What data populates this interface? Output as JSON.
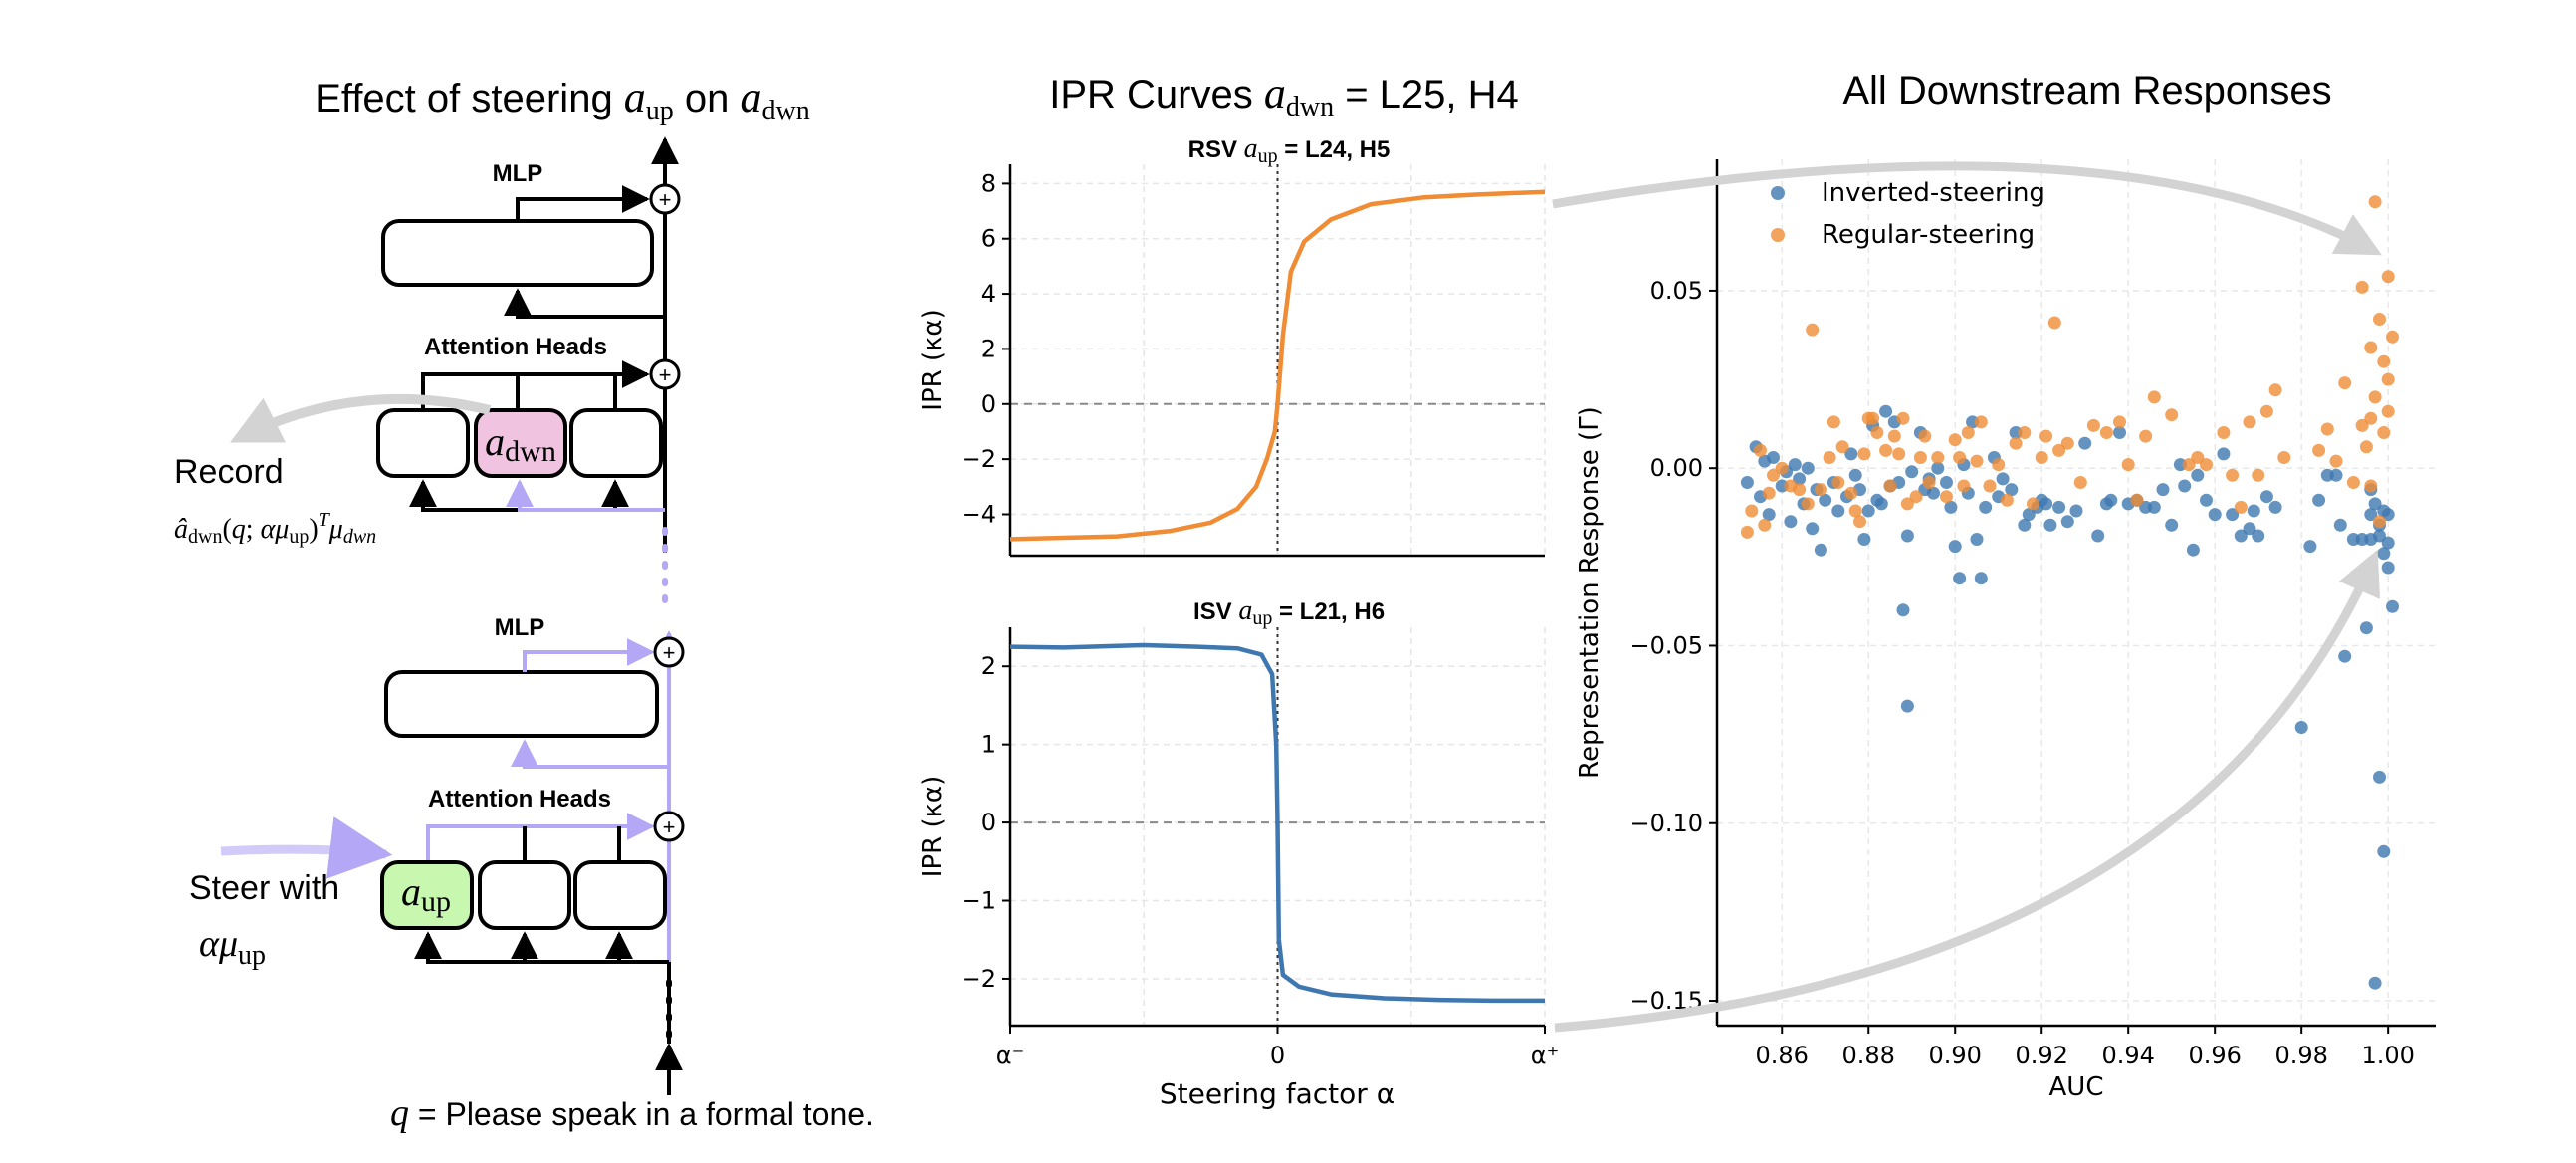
{
  "diagram": {
    "title_prefix": "Effect of steering ",
    "title_mid": " on ",
    "mlp_label": "MLP",
    "attention_label": "Attention Heads",
    "record_label": "Record",
    "steer_label": "Steer with",
    "query_text": " = Please speak in a formal tone.",
    "colors": {
      "lavender": "#b4a7f5",
      "pink": "#f0c4e0",
      "green": "#c8f7b0",
      "grey_arrow": "#d3d3d3"
    }
  },
  "ipr_panel": {
    "title_prefix": "IPR Curves ",
    "title_suffix": " =  L25, H4",
    "top_title_prefix": "RSV ",
    "top_title_suffix": " = L24, H5",
    "bottom_title_prefix": "ISV ",
    "bottom_title_suffix": " = L21, H6",
    "xlabel": "Steering factor α",
    "xticks": [
      "α⁻",
      "0",
      "α⁺"
    ]
  },
  "scatter_panel": {
    "title": "All Downstream Responses"
  },
  "chart_data": [
    {
      "type": "line",
      "title": "RSV a_up = L24, H5",
      "xlabel": "Steering factor α",
      "ylabel": "IPR (κα)",
      "xlim": [
        -1,
        1
      ],
      "ylim": [
        -5.5,
        8.7
      ],
      "yticks": [
        -4,
        -2,
        0,
        2,
        4,
        6,
        8
      ],
      "color": "#ef8c34",
      "x": [
        -1.0,
        -0.8,
        -0.6,
        -0.4,
        -0.25,
        -0.15,
        -0.08,
        -0.04,
        -0.01,
        0.0,
        0.02,
        0.05,
        0.1,
        0.2,
        0.35,
        0.55,
        0.75,
        1.0
      ],
      "y": [
        -4.9,
        -4.85,
        -4.8,
        -4.6,
        -4.3,
        -3.8,
        -3.0,
        -2.0,
        -1.0,
        0.0,
        2.5,
        4.8,
        5.9,
        6.7,
        7.25,
        7.5,
        7.6,
        7.7
      ]
    },
    {
      "type": "line",
      "title": "ISV a_up = L21, H6",
      "xlabel": "Steering factor α",
      "ylabel": "IPR (κα)",
      "xlim": [
        -1,
        1
      ],
      "ylim": [
        -2.6,
        2.5
      ],
      "yticks": [
        -2,
        -1,
        0,
        1,
        2
      ],
      "xticks": [
        "α⁻",
        "0",
        "α⁺"
      ],
      "color": "#3f78b0",
      "x": [
        -1.0,
        -0.8,
        -0.5,
        -0.3,
        -0.15,
        -0.06,
        -0.02,
        -0.005,
        0.0,
        0.005,
        0.02,
        0.08,
        0.2,
        0.4,
        0.6,
        0.8,
        1.0
      ],
      "y": [
        2.25,
        2.24,
        2.27,
        2.25,
        2.23,
        2.15,
        1.9,
        1.0,
        0.0,
        -1.5,
        -1.95,
        -2.1,
        -2.2,
        -2.25,
        -2.27,
        -2.28,
        -2.28
      ]
    },
    {
      "type": "scatter",
      "xlabel": "AUC",
      "ylabel": "Representation Response (Γ)",
      "xlim": [
        0.845,
        1.011
      ],
      "ylim": [
        -0.157,
        0.087
      ],
      "xticks": [
        0.86,
        0.88,
        0.9,
        0.92,
        0.94,
        0.96,
        0.98,
        1.0
      ],
      "yticks": [
        -0.15,
        -0.1,
        -0.05,
        0.0,
        0.05
      ],
      "legend": "top-left",
      "series": [
        {
          "name": "Inverted-steering",
          "color": "#3f78b0",
          "points": [
            [
              0.852,
              -0.004
            ],
            [
              0.854,
              0.006
            ],
            [
              0.855,
              -0.008
            ],
            [
              0.856,
              0.002
            ],
            [
              0.857,
              -0.013
            ],
            [
              0.858,
              0.003
            ],
            [
              0.86,
              -0.005
            ],
            [
              0.861,
              -0.001
            ],
            [
              0.862,
              -0.015
            ],
            [
              0.863,
              0.001
            ],
            [
              0.864,
              -0.003
            ],
            [
              0.865,
              -0.01
            ],
            [
              0.866,
              0.0
            ],
            [
              0.867,
              -0.017
            ],
            [
              0.868,
              -0.006
            ],
            [
              0.869,
              -0.023
            ],
            [
              0.87,
              -0.009
            ],
            [
              0.872,
              -0.004
            ],
            [
              0.873,
              -0.012
            ],
            [
              0.875,
              -0.008
            ],
            [
              0.876,
              0.004
            ],
            [
              0.877,
              -0.002
            ],
            [
              0.878,
              -0.006
            ],
            [
              0.879,
              -0.02
            ],
            [
              0.88,
              -0.012
            ],
            [
              0.881,
              0.012
            ],
            [
              0.882,
              -0.009
            ],
            [
              0.883,
              -0.01
            ],
            [
              0.884,
              0.016
            ],
            [
              0.885,
              -0.005
            ],
            [
              0.886,
              0.013
            ],
            [
              0.887,
              -0.004
            ],
            [
              0.888,
              -0.04
            ],
            [
              0.889,
              -0.067
            ],
            [
              0.889,
              -0.019
            ],
            [
              0.89,
              -0.001
            ],
            [
              0.892,
              0.01
            ],
            [
              0.893,
              -0.006
            ],
            [
              0.894,
              -0.003
            ],
            [
              0.895,
              -0.007
            ],
            [
              0.896,
              0.0
            ],
            [
              0.898,
              -0.004
            ],
            [
              0.899,
              -0.011
            ],
            [
              0.9,
              -0.022
            ],
            [
              0.901,
              -0.031
            ],
            [
              0.902,
              0.001
            ],
            [
              0.903,
              -0.007
            ],
            [
              0.904,
              0.013
            ],
            [
              0.905,
              -0.02
            ],
            [
              0.906,
              -0.031
            ],
            [
              0.907,
              -0.011
            ],
            [
              0.909,
              0.003
            ],
            [
              0.91,
              -0.008
            ],
            [
              0.911,
              -0.003
            ],
            [
              0.913,
              -0.006
            ],
            [
              0.914,
              0.01
            ],
            [
              0.916,
              -0.016
            ],
            [
              0.917,
              -0.013
            ],
            [
              0.919,
              -0.011
            ],
            [
              0.92,
              -0.009
            ],
            [
              0.921,
              -0.01
            ],
            [
              0.922,
              -0.016
            ],
            [
              0.924,
              -0.011
            ],
            [
              0.926,
              -0.015
            ],
            [
              0.928,
              -0.012
            ],
            [
              0.93,
              0.007
            ],
            [
              0.933,
              -0.019
            ],
            [
              0.935,
              -0.01
            ],
            [
              0.936,
              -0.009
            ],
            [
              0.938,
              0.01
            ],
            [
              0.94,
              -0.01
            ],
            [
              0.942,
              -0.009
            ],
            [
              0.944,
              -0.011
            ],
            [
              0.946,
              -0.011
            ],
            [
              0.948,
              -0.006
            ],
            [
              0.95,
              -0.016
            ],
            [
              0.952,
              0.001
            ],
            [
              0.953,
              -0.005
            ],
            [
              0.955,
              -0.023
            ],
            [
              0.956,
              -0.002
            ],
            [
              0.958,
              -0.009
            ],
            [
              0.96,
              -0.013
            ],
            [
              0.962,
              0.004
            ],
            [
              0.964,
              -0.013
            ],
            [
              0.966,
              -0.019
            ],
            [
              0.968,
              -0.017
            ],
            [
              0.969,
              -0.012
            ],
            [
              0.97,
              -0.019
            ],
            [
              0.972,
              -0.008
            ],
            [
              0.974,
              -0.011
            ],
            [
              0.98,
              -0.073
            ],
            [
              0.982,
              -0.022
            ],
            [
              0.984,
              -0.009
            ],
            [
              0.986,
              -0.002
            ],
            [
              0.988,
              -0.002
            ],
            [
              0.989,
              -0.016
            ],
            [
              0.99,
              -0.053
            ],
            [
              0.992,
              -0.02
            ],
            [
              0.994,
              -0.02
            ],
            [
              0.995,
              -0.045
            ],
            [
              0.996,
              -0.02
            ],
            [
              0.996,
              -0.006
            ],
            [
              0.996,
              -0.013
            ],
            [
              0.997,
              -0.145
            ],
            [
              0.997,
              -0.01
            ],
            [
              0.998,
              -0.087
            ],
            [
              0.998,
              -0.016
            ],
            [
              0.998,
              -0.019
            ],
            [
              0.999,
              -0.108
            ],
            [
              0.999,
              -0.024
            ],
            [
              0.999,
              -0.012
            ],
            [
              1.0,
              -0.021
            ],
            [
              1.0,
              -0.013
            ],
            [
              1.0,
              -0.028
            ],
            [
              1.001,
              -0.039
            ]
          ]
        },
        {
          "name": "Regular-steering",
          "color": "#ef8c34",
          "points": [
            [
              0.852,
              -0.018
            ],
            [
              0.853,
              -0.012
            ],
            [
              0.855,
              0.005
            ],
            [
              0.856,
              -0.016
            ],
            [
              0.857,
              -0.007
            ],
            [
              0.858,
              -0.002
            ],
            [
              0.86,
              0.0
            ],
            [
              0.862,
              -0.005
            ],
            [
              0.864,
              -0.006
            ],
            [
              0.866,
              -0.01
            ],
            [
              0.867,
              0.039
            ],
            [
              0.869,
              -0.006
            ],
            [
              0.871,
              0.003
            ],
            [
              0.872,
              0.013
            ],
            [
              0.873,
              -0.004
            ],
            [
              0.874,
              0.006
            ],
            [
              0.876,
              -0.007
            ],
            [
              0.877,
              -0.012
            ],
            [
              0.878,
              -0.015
            ],
            [
              0.879,
              0.004
            ],
            [
              0.88,
              0.014
            ],
            [
              0.881,
              0.014
            ],
            [
              0.882,
              0.01
            ],
            [
              0.884,
              0.005
            ],
            [
              0.885,
              -0.005
            ],
            [
              0.886,
              0.009
            ],
            [
              0.887,
              0.004
            ],
            [
              0.888,
              0.014
            ],
            [
              0.889,
              -0.01
            ],
            [
              0.891,
              -0.008
            ],
            [
              0.892,
              0.003
            ],
            [
              0.893,
              0.009
            ],
            [
              0.894,
              -0.004
            ],
            [
              0.896,
              0.003
            ],
            [
              0.898,
              -0.008
            ],
            [
              0.9,
              0.008
            ],
            [
              0.901,
              0.003
            ],
            [
              0.902,
              -0.005
            ],
            [
              0.903,
              0.01
            ],
            [
              0.905,
              0.002
            ],
            [
              0.906,
              0.013
            ],
            [
              0.908,
              -0.005
            ],
            [
              0.91,
              0.001
            ],
            [
              0.912,
              -0.009
            ],
            [
              0.914,
              0.007
            ],
            [
              0.916,
              0.01
            ],
            [
              0.918,
              -0.01
            ],
            [
              0.92,
              0.003
            ],
            [
              0.921,
              0.009
            ],
            [
              0.923,
              0.041
            ],
            [
              0.924,
              0.005
            ],
            [
              0.926,
              0.007
            ],
            [
              0.929,
              -0.004
            ],
            [
              0.932,
              0.012
            ],
            [
              0.935,
              0.01
            ],
            [
              0.938,
              0.013
            ],
            [
              0.94,
              0.001
            ],
            [
              0.942,
              -0.009
            ],
            [
              0.944,
              0.009
            ],
            [
              0.946,
              0.02
            ],
            [
              0.95,
              0.015
            ],
            [
              0.954,
              0.001
            ],
            [
              0.956,
              0.003
            ],
            [
              0.958,
              0.001
            ],
            [
              0.962,
              0.01
            ],
            [
              0.964,
              -0.002
            ],
            [
              0.966,
              -0.011
            ],
            [
              0.968,
              0.013
            ],
            [
              0.97,
              -0.002
            ],
            [
              0.972,
              0.016
            ],
            [
              0.974,
              0.022
            ],
            [
              0.976,
              0.003
            ],
            [
              0.984,
              0.005
            ],
            [
              0.986,
              0.011
            ],
            [
              0.988,
              0.002
            ],
            [
              0.99,
              0.024
            ],
            [
              0.992,
              -0.004
            ],
            [
              0.994,
              0.012
            ],
            [
              0.994,
              0.051
            ],
            [
              0.995,
              0.006
            ],
            [
              0.996,
              0.014
            ],
            [
              0.996,
              -0.005
            ],
            [
              0.996,
              0.034
            ],
            [
              0.997,
              0.02
            ],
            [
              0.997,
              0.075
            ],
            [
              0.998,
              0.042
            ],
            [
              0.998,
              -0.015
            ],
            [
              0.999,
              0.03
            ],
            [
              0.999,
              0.01
            ],
            [
              1.0,
              0.054
            ],
            [
              1.0,
              0.025
            ],
            [
              1.0,
              0.016
            ],
            [
              1.001,
              0.037
            ]
          ]
        }
      ]
    }
  ]
}
